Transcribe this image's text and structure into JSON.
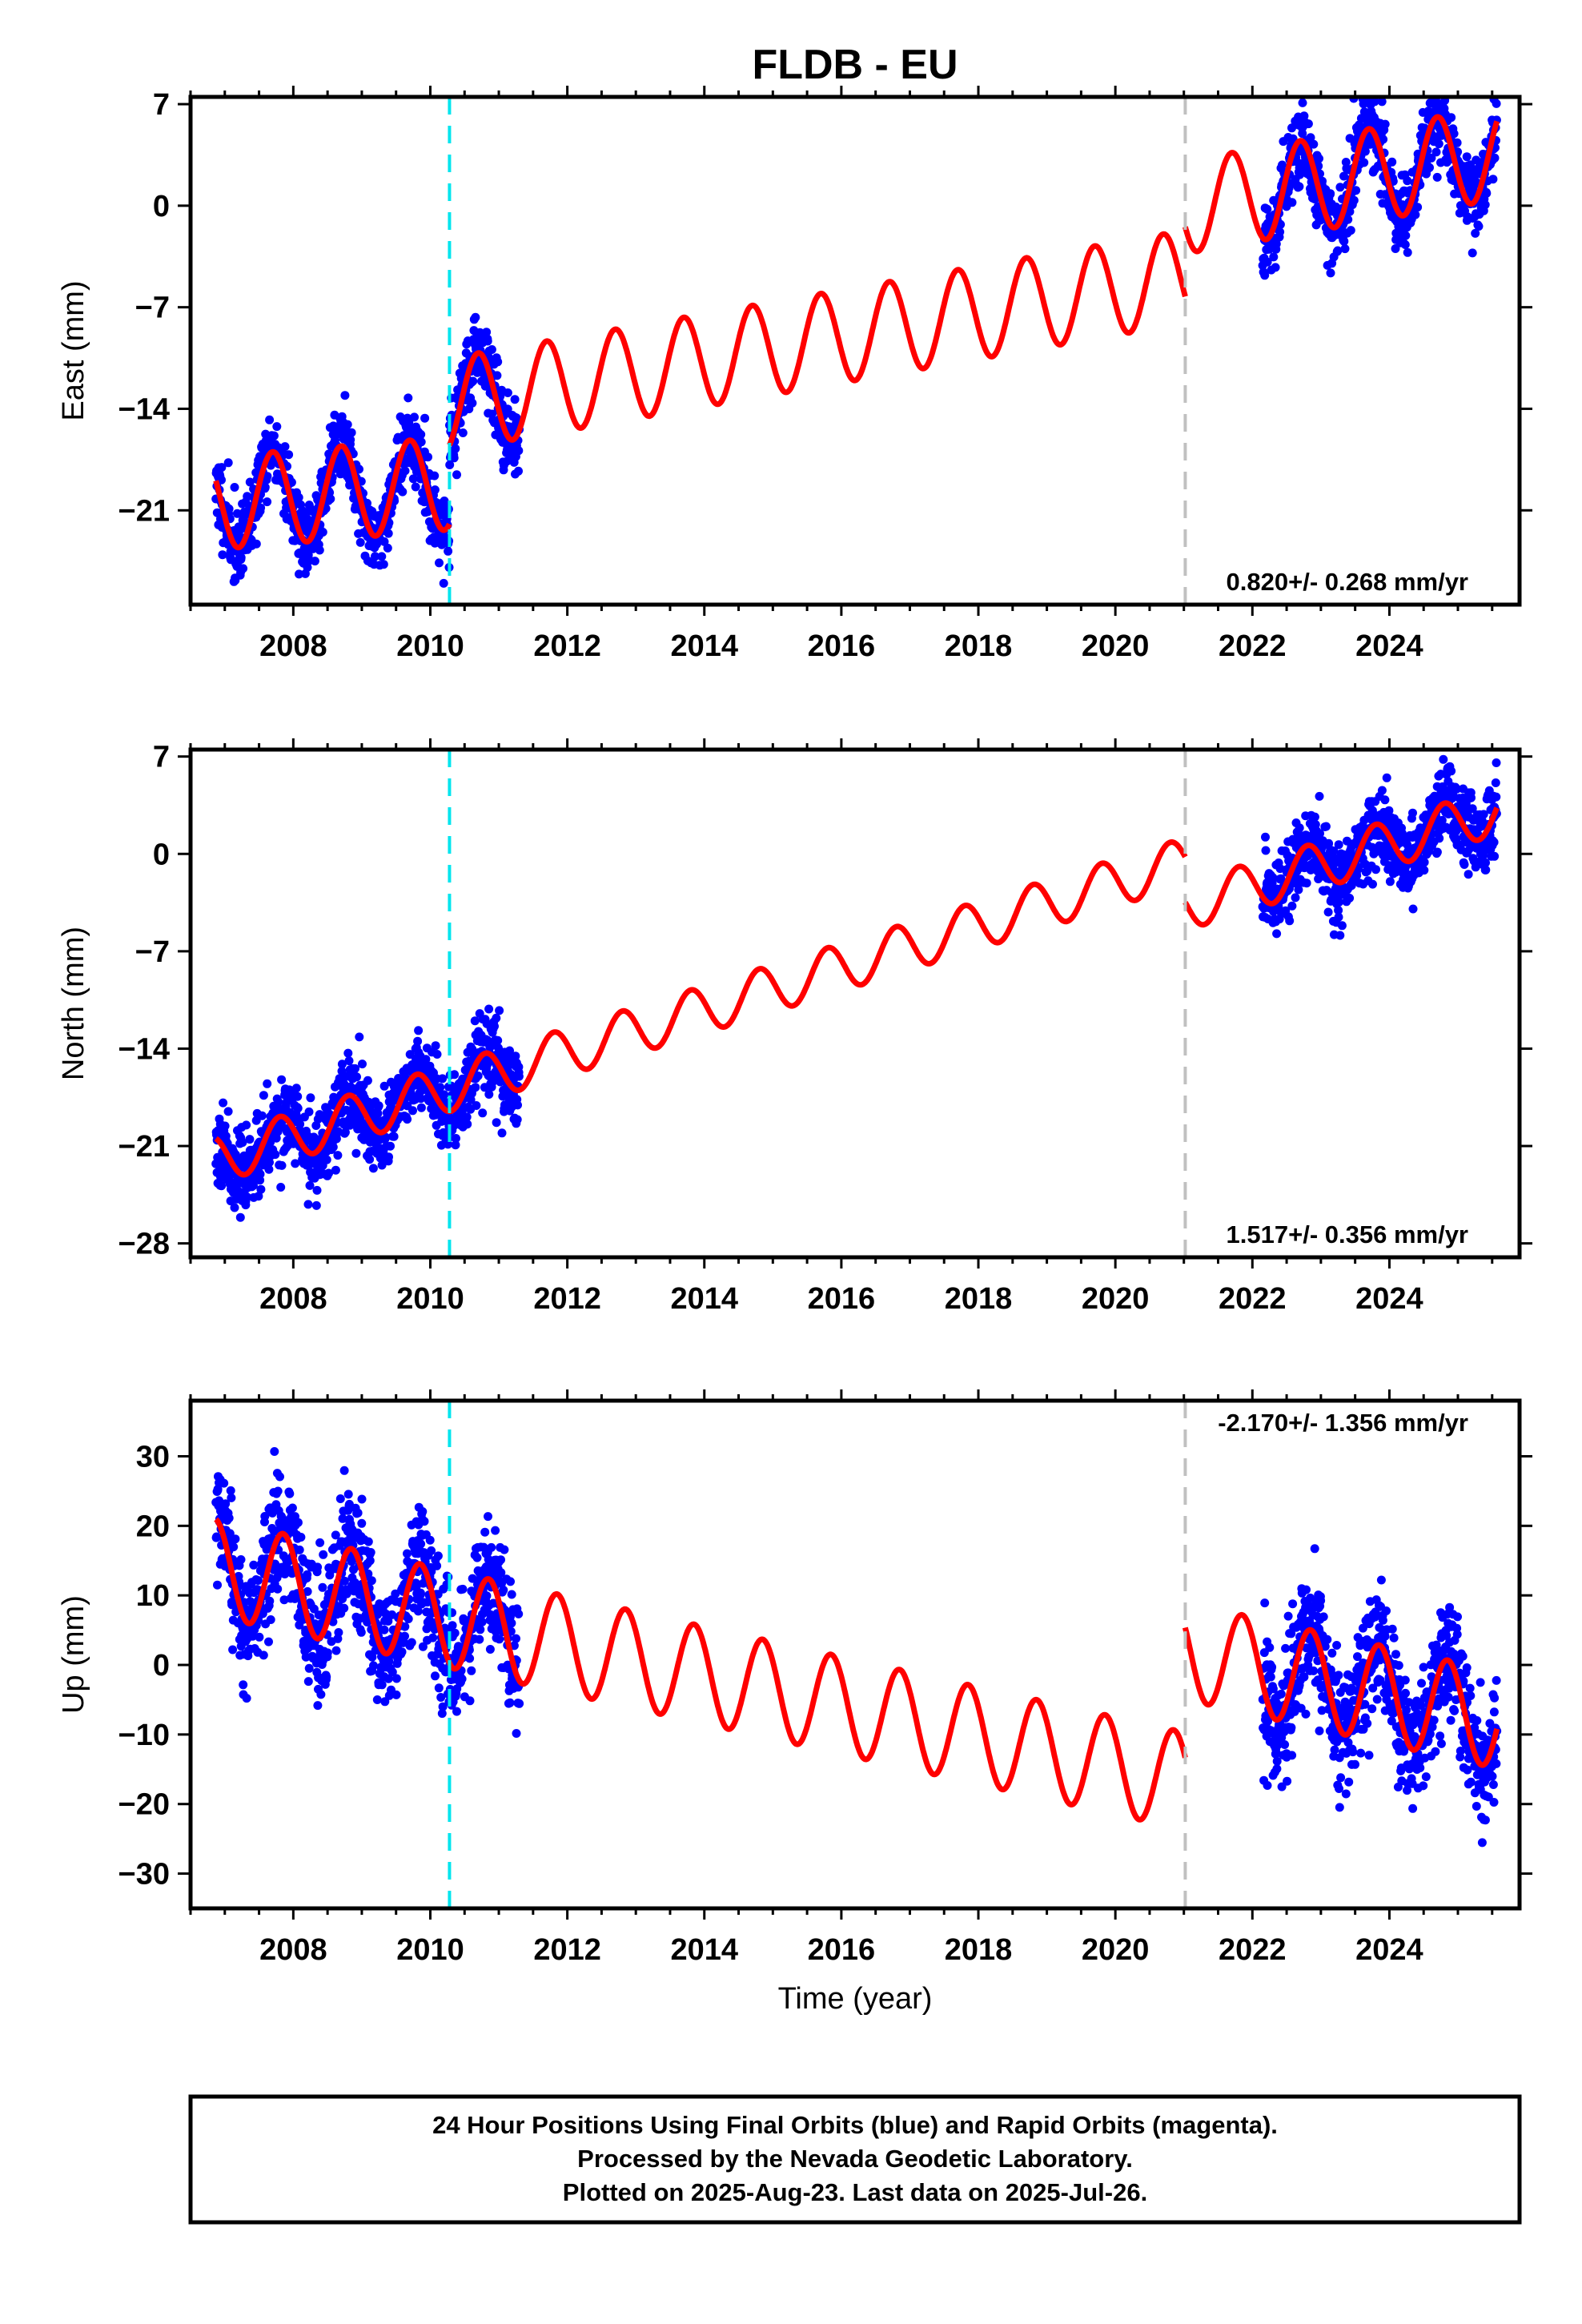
{
  "title": "FLDB - EU",
  "xlabel": "Time (year)",
  "footer": {
    "lines": [
      "24 Hour Positions Using Final Orbits (blue) and Rapid Orbits (magenta).",
      "Processed by the Nevada Geodetic Laboratory.",
      "Plotted on 2025-Aug-23. Last data on 2025-Jul-26."
    ]
  },
  "colors": {
    "data_points": "#0000ff",
    "model_line": "#ff0000",
    "equipment_change_line": "#00e5ee",
    "offset_line": "#c0c0c0",
    "frame": "#000000"
  },
  "chart_data": [
    {
      "type": "scatter",
      "ylabel": "East (mm)",
      "rate_label": "0.820+/- 0.268 mm/yr",
      "xlim": [
        2006.5,
        2025.9
      ],
      "ylim": [
        -27.5,
        7.5
      ],
      "yticks": [
        7,
        0,
        -7,
        -14,
        -21
      ],
      "ytick_labels": [
        "7",
        "0",
        "−7",
        "−14",
        "−21"
      ],
      "xticks": [
        2008,
        2010,
        2012,
        2014,
        2016,
        2018,
        2020,
        2022,
        2024
      ],
      "equipment_change_x": 2010.28,
      "offset_x": 2021.02,
      "model": {
        "segments": [
          {
            "start": 2006.87,
            "end": 2010.28,
            "a": -20.5,
            "b": 0.4,
            "c": -1.2
          },
          {
            "start": 2010.28,
            "end": 2021.02,
            "a": -13.7,
            "b": 0.82,
            "c": 3.2
          },
          {
            "start": 2021.02,
            "end": 2025.57,
            "a": -0.1,
            "b": 0.82,
            "c": 3.2
          }
        ],
        "amplitude": 3.2,
        "phase": 0.45
      },
      "observations": {
        "ranges": [
          [
            2006.87,
            2011.3
          ],
          [
            2022.15,
            2025.57
          ]
        ],
        "noise": 1.3,
        "density": 220,
        "seed": 11
      }
    },
    {
      "type": "scatter",
      "ylabel": "North (mm)",
      "rate_label": "1.517+/- 0.356 mm/yr",
      "xlim": [
        2006.5,
        2025.9
      ],
      "ylim": [
        -29.0,
        7.5
      ],
      "yticks": [
        7,
        0,
        -7,
        -14,
        -21,
        -28
      ],
      "ytick_labels": [
        "7",
        "0",
        "−7",
        "−14",
        "−21",
        "−28"
      ],
      "xticks": [
        2008,
        2010,
        2012,
        2014,
        2016,
        2018,
        2020,
        2022,
        2024
      ],
      "equipment_change_x": 2010.28,
      "offset_x": 2021.02,
      "model": {
        "segments": [
          {
            "start": 2006.87,
            "end": 2021.02,
            "a": -22.0,
            "b": 1.517,
            "c": 0.9
          },
          {
            "start": 2021.02,
            "end": 2025.57,
            "a": -3.8,
            "b": 1.517,
            "c": -1.2
          }
        ],
        "amplitude": 1.7,
        "phase": 0.55
      },
      "observations": {
        "ranges": [
          [
            2006.87,
            2011.3
          ],
          [
            2022.15,
            2025.57
          ]
        ],
        "noise": 1.4,
        "density": 220,
        "seed": 23
      }
    },
    {
      "type": "scatter",
      "ylabel": "Up (mm)",
      "rate_label": "-2.170+/- 1.356 mm/yr",
      "xlim": [
        2006.5,
        2025.9
      ],
      "ylim": [
        -35.0,
        38.0
      ],
      "yticks": [
        30,
        20,
        10,
        0,
        -10,
        -20,
        -30
      ],
      "ytick_labels": [
        "30",
        "20",
        "10",
        "0",
        "−10",
        "−20",
        "−30"
      ],
      "xticks": [
        2008,
        2010,
        2012,
        2014,
        2016,
        2018,
        2020,
        2022,
        2024
      ],
      "equipment_change_x": 2010.28,
      "offset_x": 2021.02,
      "model": {
        "segments": [
          {
            "start": 2006.87,
            "end": 2021.02,
            "a": 14.0,
            "b": -2.17,
            "c": 0.0
          },
          {
            "start": 2021.02,
            "end": 2025.57,
            "a": 2.0,
            "b": -2.17,
            "c": 0.0
          }
        ],
        "amplitude": 7.0,
        "phase": 0.6
      },
      "observations": {
        "ranges": [
          [
            2006.87,
            2011.3
          ],
          [
            2022.15,
            2025.57
          ]
        ],
        "noise": 4.5,
        "density": 220,
        "seed": 37
      }
    }
  ]
}
